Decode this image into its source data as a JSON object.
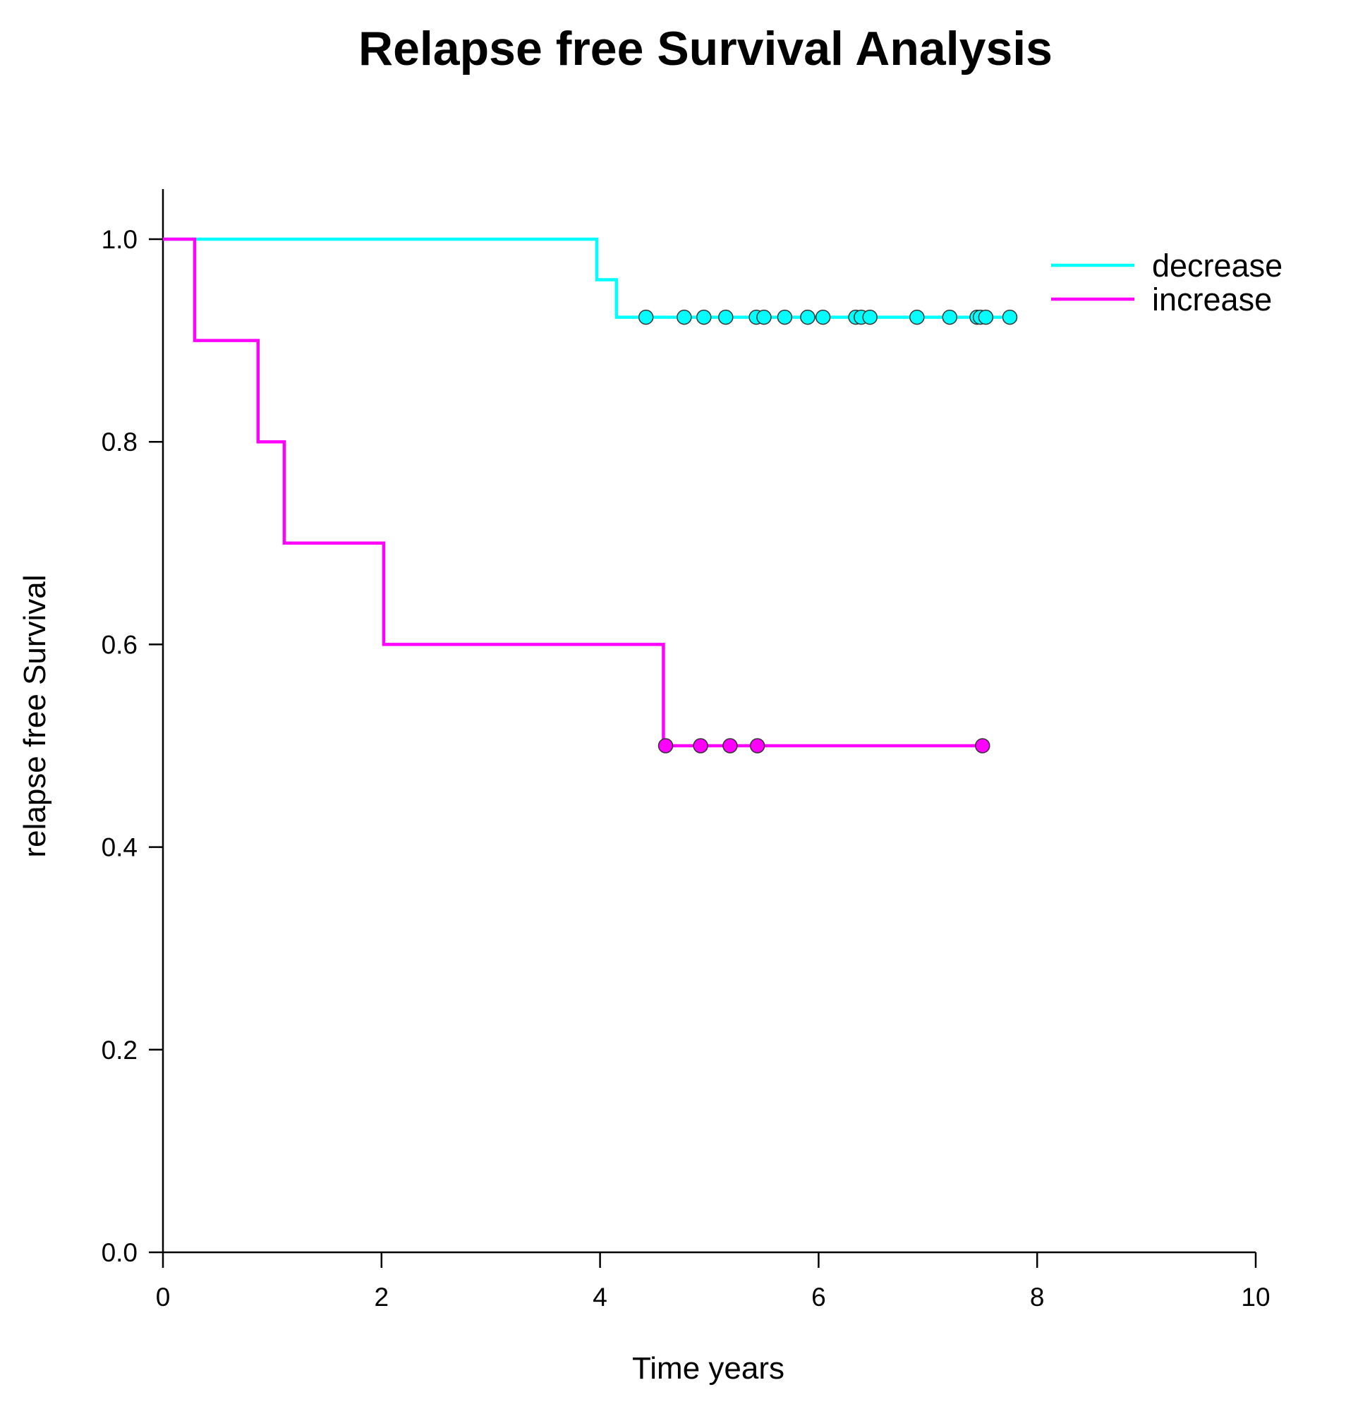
{
  "chart_data": {
    "type": "line",
    "subtype": "kaplan-meier step",
    "title": "Relapse free Survival Analysis",
    "xlabel": "Time years",
    "ylabel": "relapse free Survival",
    "xlim": [
      0,
      10
    ],
    "ylim": [
      0,
      1
    ],
    "xticks": [
      0,
      2,
      4,
      6,
      8,
      10
    ],
    "xtick_labels": [
      "0",
      "2",
      "4",
      "6",
      "8",
      "10"
    ],
    "yticks": [
      0.0,
      0.2,
      0.4,
      0.6,
      0.8,
      1.0
    ],
    "ytick_labels": [
      "0.0",
      "0.2",
      "0.4",
      "0.6",
      "0.8",
      "1.0"
    ],
    "grid": false,
    "legend_position": "top-right",
    "series": [
      {
        "name": "decrease",
        "color": "#00FFFF",
        "steps": [
          [
            0,
            1.0
          ],
          [
            3.97,
            0.96
          ],
          [
            4.15,
            0.923
          ]
        ],
        "end_time": 7.75,
        "censored_times": [
          4.42,
          4.77,
          4.95,
          5.15,
          5.43,
          5.5,
          5.69,
          5.9,
          6.04,
          6.34,
          6.39,
          6.47,
          6.9,
          7.2,
          7.45,
          7.48,
          7.53,
          7.75
        ]
      },
      {
        "name": "increase",
        "color": "#FF00FF",
        "steps": [
          [
            0,
            1.0
          ],
          [
            0.29,
            0.9
          ],
          [
            0.87,
            0.8
          ],
          [
            1.11,
            0.7
          ],
          [
            2.02,
            0.6
          ],
          [
            4.58,
            0.5
          ]
        ],
        "end_time": 7.5,
        "censored_times": [
          4.6,
          4.92,
          5.19,
          5.44,
          7.5
        ]
      }
    ]
  }
}
